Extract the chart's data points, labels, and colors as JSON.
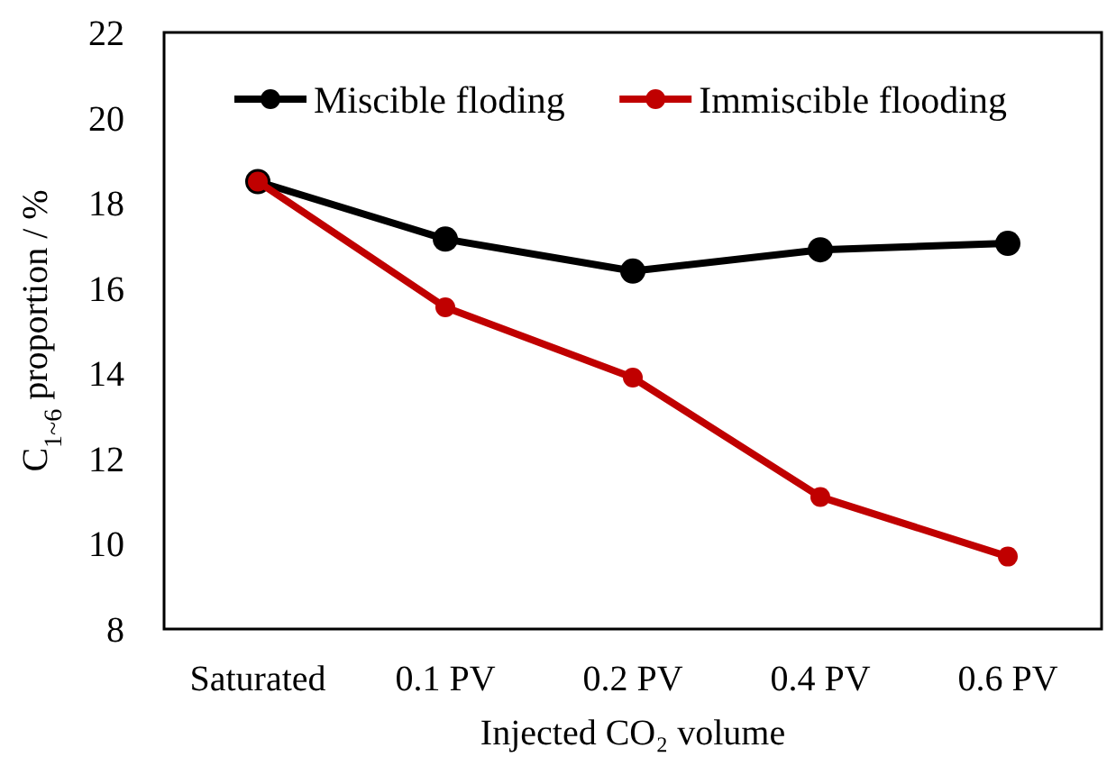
{
  "chart_data": {
    "type": "line",
    "xlabel": "Injected CO₂ volume",
    "ylabel": "C$_{1~6}$ proportion / %",
    "categories": [
      "Saturated",
      "0.1 PV",
      "0.2 PV",
      "0.4 PV",
      "0.6 PV"
    ],
    "series": [
      {
        "name": "Miscible floding",
        "color": "#000000",
        "values": [
          18.5,
          17.15,
          16.4,
          16.9,
          17.05
        ]
      },
      {
        "name": "Immiscible flooding",
        "color": "#c00000",
        "values": [
          18.5,
          15.55,
          13.9,
          11.1,
          9.7
        ]
      }
    ],
    "ylim": [
      8,
      22
    ],
    "yticks": [
      8,
      10,
      12,
      14,
      16,
      18,
      20,
      22
    ],
    "grid": false,
    "legend": "top",
    "marker": "circle",
    "line_style": "solid"
  }
}
